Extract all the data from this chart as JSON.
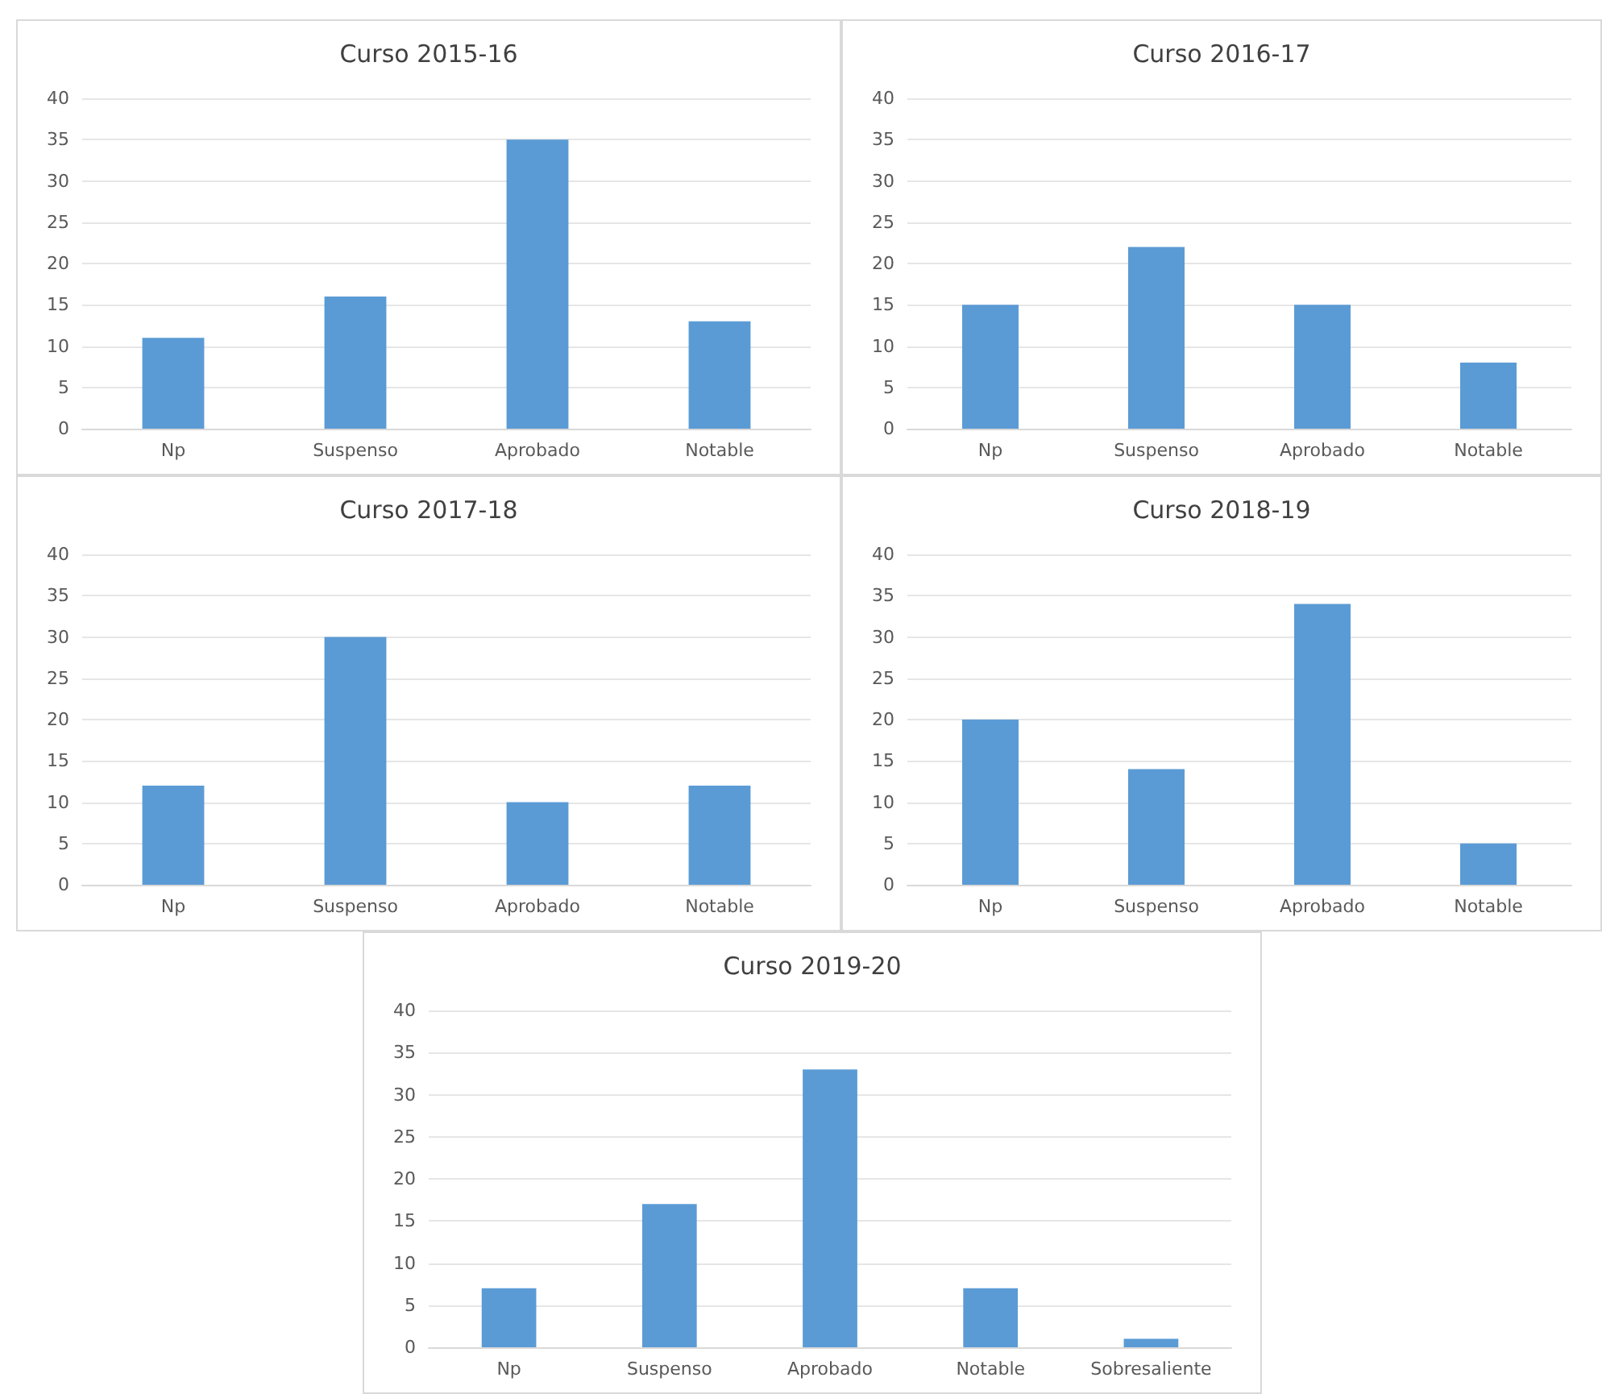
{
  "chart_data": [
    {
      "type": "bar",
      "title": "Curso 2015-16",
      "categories": [
        "Np",
        "Suspenso",
        "Aprobado",
        "Notable"
      ],
      "values": [
        11,
        16,
        35,
        13
      ],
      "color": "#5b9bd5",
      "ylim": [
        0,
        40
      ],
      "yticks": [
        0,
        5,
        10,
        15,
        20,
        25,
        30,
        35,
        40
      ],
      "grid": "y"
    },
    {
      "type": "bar",
      "title": "Curso 2016-17",
      "categories": [
        "Np",
        "Suspenso",
        "Aprobado",
        "Notable"
      ],
      "values": [
        15,
        22,
        15,
        8
      ],
      "color": "#5b9bd5",
      "ylim": [
        0,
        40
      ],
      "yticks": [
        0,
        5,
        10,
        15,
        20,
        25,
        30,
        35,
        40
      ],
      "grid": "y"
    },
    {
      "type": "bar",
      "title": "Curso 2017-18",
      "categories": [
        "Np",
        "Suspenso",
        "Aprobado",
        "Notable"
      ],
      "values": [
        12,
        30,
        10,
        12
      ],
      "color": "#5b9bd5",
      "ylim": [
        0,
        40
      ],
      "yticks": [
        0,
        5,
        10,
        15,
        20,
        25,
        30,
        35,
        40
      ],
      "grid": "y"
    },
    {
      "type": "bar",
      "title": "Curso 2018-19",
      "categories": [
        "Np",
        "Suspenso",
        "Aprobado",
        "Notable"
      ],
      "values": [
        20,
        14,
        34,
        5
      ],
      "color": "#5b9bd5",
      "ylim": [
        0,
        40
      ],
      "yticks": [
        0,
        5,
        10,
        15,
        20,
        25,
        30,
        35,
        40
      ],
      "grid": "y"
    },
    {
      "type": "bar",
      "title": "Curso 2019-20",
      "categories": [
        "Np",
        "Suspenso",
        "Aprobado",
        "Notable",
        "Sobresaliente"
      ],
      "values": [
        7,
        17,
        33,
        7,
        1
      ],
      "color": "#5b9bd5",
      "ylim": [
        0,
        40
      ],
      "yticks": [
        0,
        5,
        10,
        15,
        20,
        25,
        30,
        35,
        40
      ],
      "grid": "y"
    }
  ]
}
